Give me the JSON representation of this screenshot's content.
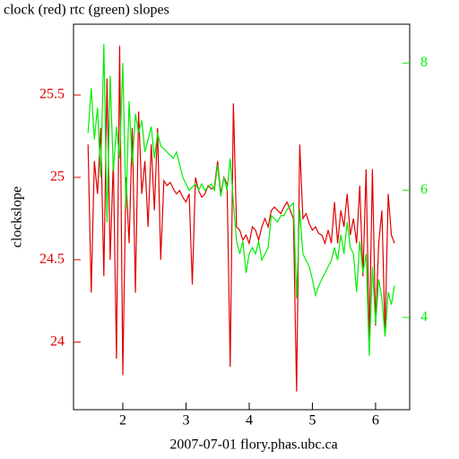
{
  "chart_data": {
    "type": "line",
    "title": "clock (red) rtc (green) slopes",
    "xlabel": "2007-07-01 flory.phas.ubc.ca",
    "ylabel": "clockslope",
    "x": [
      1.45,
      1.5,
      1.55,
      1.6,
      1.65,
      1.7,
      1.75,
      1.8,
      1.85,
      1.9,
      1.95,
      2.0,
      2.05,
      2.1,
      2.15,
      2.2,
      2.25,
      2.3,
      2.35,
      2.4,
      2.45,
      2.5,
      2.55,
      2.6,
      2.65,
      2.7,
      2.75,
      2.8,
      2.85,
      2.9,
      2.95,
      3.0,
      3.05,
      3.1,
      3.15,
      3.2,
      3.25,
      3.3,
      3.35,
      3.4,
      3.45,
      3.5,
      3.55,
      3.6,
      3.65,
      3.7,
      3.75,
      3.8,
      3.85,
      3.9,
      3.95,
      4.0,
      4.05,
      4.1,
      4.15,
      4.2,
      4.25,
      4.3,
      4.35,
      4.4,
      4.45,
      4.5,
      4.55,
      4.6,
      4.65,
      4.7,
      4.75,
      4.8,
      4.85,
      4.9,
      4.95,
      5.0,
      5.05,
      5.1,
      5.15,
      5.2,
      5.25,
      5.3,
      5.35,
      5.4,
      5.45,
      5.5,
      5.55,
      5.6,
      5.65,
      5.7,
      5.75,
      5.8,
      5.85,
      5.9,
      5.95,
      6.0,
      6.05,
      6.1,
      6.15,
      6.2,
      6.25,
      6.3
    ],
    "series": [
      {
        "name": "clock",
        "color": "#e00000",
        "axis": "y",
        "values": [
          25.2,
          24.3,
          25.1,
          24.9,
          25.3,
          24.4,
          25.6,
          24.5,
          25.1,
          23.9,
          25.8,
          23.8,
          25.0,
          24.6,
          25.3,
          24.3,
          25.4,
          24.9,
          25.1,
          24.7,
          25.2,
          24.8,
          25.3,
          24.5,
          24.98,
          24.95,
          24.97,
          24.93,
          24.9,
          24.92,
          24.88,
          24.85,
          24.9,
          24.35,
          25.0,
          24.92,
          24.88,
          24.9,
          24.95,
          24.93,
          24.94,
          25.1,
          24.9,
          25.0,
          24.96,
          23.85,
          25.45,
          24.7,
          24.68,
          24.62,
          24.65,
          24.6,
          24.7,
          24.68,
          24.62,
          24.7,
          24.75,
          24.7,
          24.8,
          24.82,
          24.8,
          24.78,
          24.82,
          24.85,
          24.8,
          24.75,
          23.7,
          25.2,
          24.75,
          24.78,
          24.72,
          24.68,
          24.7,
          24.66,
          24.65,
          24.6,
          24.68,
          24.6,
          24.85,
          24.6,
          24.8,
          24.7,
          24.9,
          24.65,
          24.75,
          24.6,
          24.95,
          24.4,
          25.05,
          24.0,
          25.05,
          24.1,
          24.6,
          24.8,
          24.05,
          24.9,
          24.65,
          24.6
        ]
      },
      {
        "name": "rtc",
        "color": "#00ee00",
        "axis": "y2",
        "values": [
          6.9,
          7.6,
          6.8,
          7.3,
          6.2,
          8.3,
          5.5,
          7.8,
          6.3,
          7.0,
          6.5,
          8.0,
          5.7,
          7.4,
          6.4,
          7.2,
          6.9,
          7.1,
          6.6,
          6.8,
          7.0,
          6.5,
          6.9,
          6.7,
          6.65,
          6.6,
          6.55,
          6.5,
          6.6,
          6.4,
          6.2,
          6.1,
          6.0,
          6.05,
          6.1,
          6.0,
          6.1,
          6.0,
          6.05,
          6.1,
          6.0,
          6.4,
          5.9,
          6.2,
          6.0,
          6.5,
          5.8,
          5.2,
          5.0,
          5.2,
          4.7,
          5.0,
          5.1,
          5.0,
          5.2,
          4.9,
          5.0,
          5.1,
          5.6,
          5.55,
          5.5,
          5.6,
          5.6,
          5.7,
          5.75,
          5.8,
          4.3,
          5.7,
          5.0,
          4.9,
          4.8,
          4.6,
          4.35,
          4.5,
          4.6,
          4.7,
          4.8,
          4.9,
          5.1,
          4.9,
          5.3,
          5.0,
          5.5,
          5.1,
          5.0,
          4.4,
          5.2,
          4.7,
          5.0,
          3.4,
          4.8,
          3.9,
          4.6,
          4.3,
          3.7,
          4.4,
          4.2,
          4.5
        ]
      }
    ],
    "xlim": [
      1.22,
      6.54
    ],
    "xticks": [
      2,
      3,
      4,
      5,
      6
    ],
    "ylim": [
      23.59,
      25.93
    ],
    "yticks": [
      24,
      24.5,
      25,
      25.5
    ],
    "y2lim": [
      2.55,
      8.61
    ],
    "y2ticks": [
      4,
      6,
      8
    ]
  }
}
